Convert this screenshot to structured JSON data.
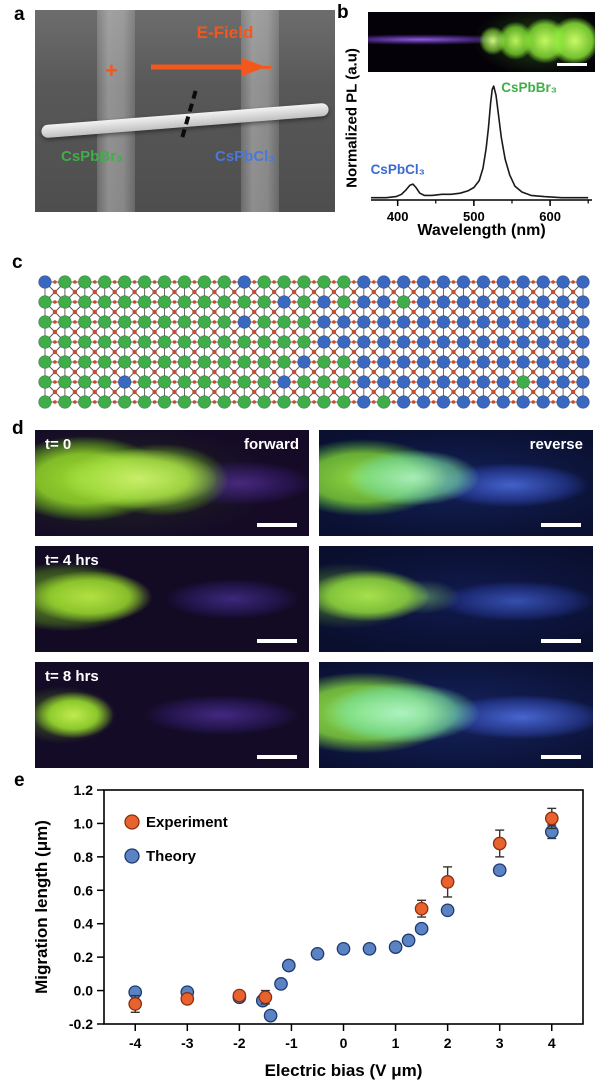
{
  "panels": {
    "a": {
      "label": "a",
      "efield_label": "E-Field",
      "plus_sign": "+",
      "minus_sign": "−",
      "material_left": "CsPbBr₃",
      "material_right": "CsPbCl₃",
      "colors": {
        "accent_orange": "#f4571c",
        "green": "#3fae49",
        "blue": "#4a78d8"
      }
    },
    "b": {
      "label": "b"
    },
    "c": {
      "label": "c",
      "lattice": {
        "cols": 28,
        "rows": 7,
        "halide_left_color": "#3fae49",
        "halide_right_color": "#3a67c0",
        "cation_color": "#cf4a28",
        "frame_color": "#555555"
      }
    },
    "d": {
      "label": "d",
      "left_header": "forward",
      "right_header": "reverse",
      "times": [
        "t= 0",
        "t= 4 hrs",
        "t= 8 hrs"
      ]
    },
    "e": {
      "label": "e"
    }
  },
  "chart_data": [
    {
      "id": "pl_spectrum",
      "type": "line",
      "title": "",
      "xlabel": "Wavelength (nm)",
      "ylabel": "Normalized PL (a.u)",
      "xlim": [
        365,
        655
      ],
      "ylim": [
        0,
        1.08
      ],
      "xticks": [
        400,
        500,
        600
      ],
      "grid": false,
      "line_color": "#1a1a1a",
      "x": [
        365,
        385,
        398,
        405,
        411,
        416,
        420,
        424,
        429,
        435,
        445,
        458,
        470,
        482,
        492,
        500,
        507,
        512,
        516,
        519,
        522,
        524,
        526,
        529,
        532,
        536,
        541,
        547,
        554,
        563,
        575,
        592,
        615,
        650
      ],
      "y": [
        0.02,
        0.02,
        0.03,
        0.05,
        0.09,
        0.13,
        0.14,
        0.11,
        0.06,
        0.04,
        0.04,
        0.05,
        0.05,
        0.06,
        0.08,
        0.11,
        0.17,
        0.28,
        0.45,
        0.63,
        0.85,
        0.97,
        1.0,
        0.92,
        0.76,
        0.55,
        0.36,
        0.22,
        0.12,
        0.07,
        0.04,
        0.03,
        0.02,
        0.02
      ],
      "annotations": [
        {
          "text": "CsPbCl₃",
          "color": "#3a6bd0",
          "x": 400,
          "y": 0.23,
          "anchor": "middle"
        },
        {
          "text": "CsPbBr₃",
          "color": "#3fae49",
          "x": 536,
          "y": 0.95,
          "anchor": "start"
        }
      ]
    },
    {
      "id": "migration_vs_bias",
      "type": "scatter",
      "title": "",
      "xlabel": "Electric bias (V μm)",
      "ylabel": "Migration length (μm)",
      "xlim": [
        -4.6,
        4.6
      ],
      "ylim": [
        -0.2,
        1.2
      ],
      "xticks": [
        -4,
        -3,
        -2,
        -1,
        0,
        1,
        2,
        3,
        4
      ],
      "yticks": [
        -0.2,
        0.0,
        0.2,
        0.4,
        0.6,
        0.8,
        1.0,
        1.2
      ],
      "grid": false,
      "legend_position": "upper-left",
      "series": [
        {
          "name": "Experiment",
          "color": "#e8622d",
          "edge": "#8a2f10",
          "x": [
            -4,
            -3,
            -2,
            -1.5,
            1.5,
            2,
            3,
            4
          ],
          "y": [
            -0.08,
            -0.05,
            -0.03,
            -0.04,
            0.49,
            0.65,
            0.88,
            1.03
          ],
          "yerr": [
            0.05,
            0.02,
            0.02,
            0.04,
            0.05,
            0.09,
            0.08,
            0.06
          ]
        },
        {
          "name": "Theory",
          "color": "#5b83c4",
          "edge": "#1d3a6e",
          "x": [
            -4,
            -3,
            -2,
            -1.55,
            -1.4,
            -1.2,
            -1.05,
            -0.5,
            0,
            0.5,
            1,
            1.25,
            1.5,
            2,
            3,
            4
          ],
          "y": [
            -0.01,
            -0.01,
            -0.04,
            -0.06,
            -0.15,
            0.04,
            0.15,
            0.22,
            0.25,
            0.25,
            0.26,
            0.3,
            0.37,
            0.48,
            0.72,
            0.95
          ],
          "yerr": [
            0,
            0,
            0,
            0,
            0,
            0,
            0,
            0,
            0,
            0,
            0,
            0,
            0,
            0,
            0,
            0.04
          ]
        }
      ]
    }
  ]
}
